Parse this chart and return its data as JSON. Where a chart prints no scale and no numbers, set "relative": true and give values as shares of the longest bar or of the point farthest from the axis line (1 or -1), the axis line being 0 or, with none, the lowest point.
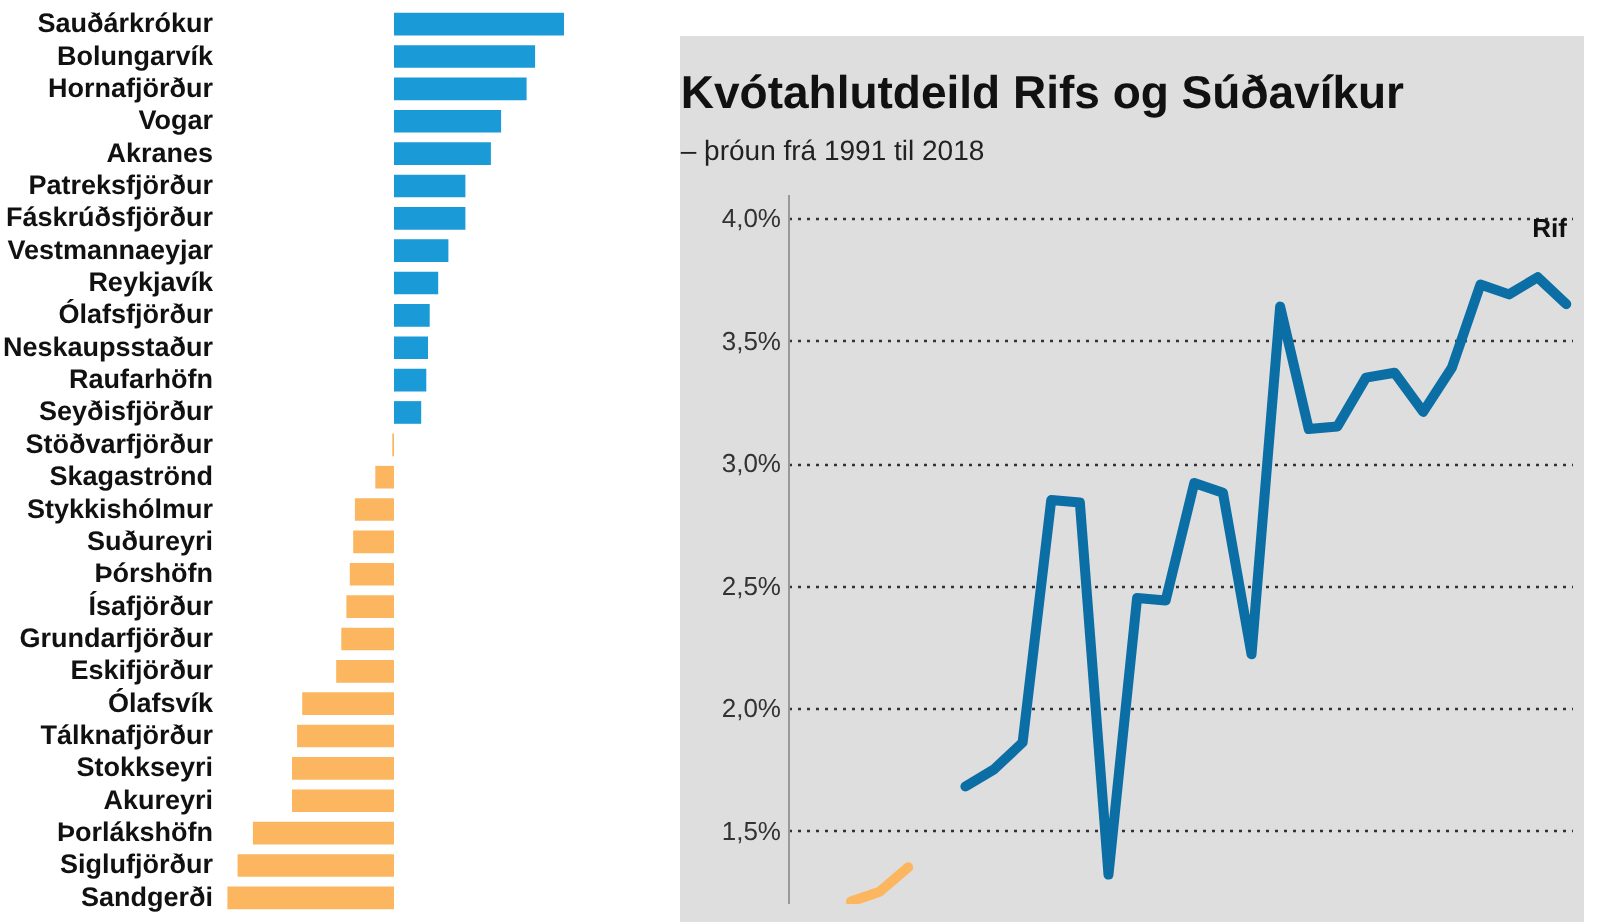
{
  "chart_data": [
    {
      "type": "bar",
      "orientation": "horizontal",
      "relative": true,
      "categories": [
        "Sauðárkrókur",
        "Bolungarvík",
        "Hornafjörður",
        "Vogar",
        "Akranes",
        "Patreksfjörður",
        "Fáskrúðsfjörður",
        "Vestmannaeyjar",
        "Reykjavík",
        "Ólafsfjörður",
        "Neskaupsstaður",
        "Raufarhöfn",
        "Seyðisfjörður",
        "Stöðvarfjörður",
        "Skagaströnd",
        "Stykkishólmur",
        "Suðureyri",
        "Þórshöfn",
        "Ísafjörður",
        "Grundarfjörður",
        "Eskifjörður",
        "Ólafsvík",
        "Tálknafjörður",
        "Stokkseyri",
        "Akureyri",
        "Þorlákshöfn",
        "Siglufjörður",
        "Sandgerði"
      ],
      "values": [
        1,
        0.83,
        0.78,
        0.63,
        0.57,
        0.42,
        0.42,
        0.32,
        0.26,
        0.21,
        0.2,
        0.19,
        0.16,
        -0.01,
        -0.11,
        -0.23,
        -0.24,
        -0.26,
        -0.28,
        -0.31,
        -0.34,
        -0.54,
        -0.57,
        -0.6,
        -0.6,
        -0.83,
        -0.92,
        -0.98
      ],
      "colors": [
        "#1a9ad6",
        "#1a9ad6",
        "#1a9ad6",
        "#1a9ad6",
        "#1a9ad6",
        "#1a9ad6",
        "#1a9ad6",
        "#1a9ad6",
        "#1a9ad6",
        "#1a9ad6",
        "#1a9ad6",
        "#1a9ad6",
        "#1a9ad6",
        "#fbb65f",
        "#fbb65f",
        "#fbb65f",
        "#fbb65f",
        "#fbb65f",
        "#fbb65f",
        "#fbb65f",
        "#fbb65f",
        "#fbb65f",
        "#fbb65f",
        "#fbb65f",
        "#fbb65f",
        "#fbb65f",
        "#fbb65f",
        "#fbb65f"
      ]
    },
    {
      "type": "line",
      "title": "Kvótahlutdeild Rifs og Súðavíkur",
      "subtitle": "– þróun frá 1991 til 2018",
      "categories": [
        null,
        null,
        null,
        null,
        null,
        null,
        null,
        null,
        null,
        null,
        null,
        null,
        null,
        null,
        null,
        null,
        null,
        null,
        null,
        null,
        null,
        null,
        null,
        null,
        null,
        null,
        null,
        null
      ],
      "ylim": [
        1.2,
        4.1
      ],
      "yticks": [
        {
          "value": 1.5,
          "label": "1,5%"
        },
        {
          "value": 2,
          "label": "2,0%"
        },
        {
          "value": 2.5,
          "label": "2,5%"
        },
        {
          "value": 3,
          "label": "3,0%"
        },
        {
          "value": 3.5,
          "label": "3,5%"
        },
        {
          "value": 4,
          "label": "4,0%"
        }
      ],
      "grid": "y",
      "legend": false,
      "series": [
        {
          "color": "#fbb65f",
          "values": [
            null,
            null,
            1.21,
            1.25,
            1.35,
            null,
            null,
            null,
            null,
            null,
            null,
            null,
            null,
            null,
            null,
            null,
            null,
            null,
            null,
            null,
            null,
            null,
            null,
            null,
            null,
            null,
            null,
            null
          ]
        },
        {
          "name": "Rif",
          "color": "#0b6ea5",
          "values": [
            null,
            null,
            null,
            null,
            null,
            null,
            1.68,
            1.75,
            1.86,
            2.85,
            2.84,
            1.32,
            2.45,
            2.44,
            2.92,
            2.88,
            2.22,
            3.64,
            3.14,
            3.15,
            3.35,
            3.37,
            3.21,
            3.39,
            3.73,
            3.69,
            3.76,
            3.65
          ]
        }
      ]
    }
  ]
}
